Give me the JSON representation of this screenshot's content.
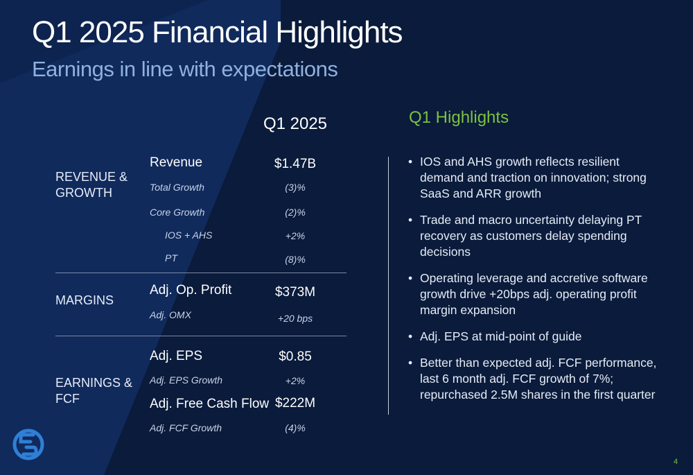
{
  "title": "Q1 2025 Financial Highlights",
  "subtitle": "Earnings in line with expectations",
  "table": {
    "column_header": "Q1 2025",
    "sections": [
      {
        "category": "REVENUE & GROWTH",
        "rows": [
          {
            "label": "Revenue",
            "value": "$1.47B"
          },
          {
            "label": "Total Growth",
            "value": "(3)%"
          },
          {
            "label": "Core Growth",
            "value": "(2)%"
          },
          {
            "label": "IOS + AHS",
            "value": "+2%"
          },
          {
            "label": "PT",
            "value": "(8)%"
          }
        ]
      },
      {
        "category": "MARGINS",
        "rows": [
          {
            "label": "Adj. Op. Profit",
            "value": "$373M"
          },
          {
            "label": "Adj. OMX",
            "value": "+20 bps"
          }
        ]
      },
      {
        "category": "EARNINGS & FCF",
        "rows": [
          {
            "label": "Adj. EPS",
            "value": "$0.85"
          },
          {
            "label": "Adj. EPS Growth",
            "value": "+2%"
          },
          {
            "label": "Adj. Free Cash Flow",
            "value": "$222M"
          },
          {
            "label": "Adj. FCF Growth",
            "value": "(4)%"
          }
        ]
      }
    ]
  },
  "highlights": {
    "heading": "Q1 Highlights",
    "bullets": [
      "IOS and AHS growth reflects resilient demand and traction on innovation; strong SaaS and ARR growth",
      "Trade and macro uncertainty delaying PT recovery as customers delay spending decisions",
      "Operating leverage and accretive software growth drive +20bps adj. operating profit margin expansion",
      "Adj. EPS at mid-point of guide",
      "Better than expected adj. FCF performance, last 6 month adj. FCF growth of 7%; repurchased 2.5M shares in the first quarter"
    ]
  },
  "page_number": "4",
  "colors": {
    "background": "#0a1b3b",
    "accent_green": "#7cc142",
    "subtitle_blue": "#8fb0e0",
    "logo_blue": "#2f7fd6"
  },
  "icons": {
    "logo": "company-logo-icon",
    "bullet": "bullet-dot"
  }
}
